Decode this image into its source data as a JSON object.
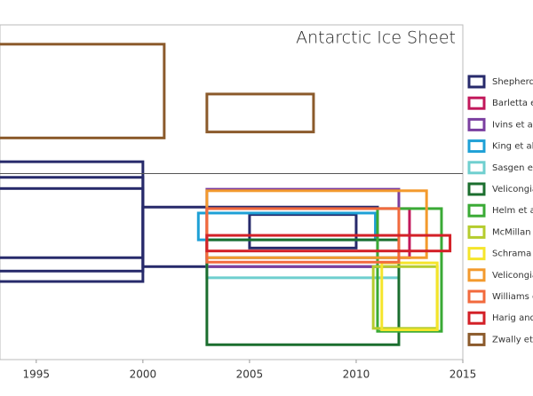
{
  "chart_data": {
    "type": "range_box",
    "title": "Antarctic Ice Sheet",
    "xlim": [
      1993.3,
      2015
    ],
    "xticks": [
      1995,
      2000,
      2005,
      2010,
      2015
    ],
    "ylim": [
      -250,
      200
    ],
    "zero_line": 0,
    "series": [
      {
        "name": "Shepherd",
        "color": "#272a6b",
        "boxes": [
          {
            "x": [
              1992,
              2000
            ],
            "y": [
              -113,
              16
            ]
          },
          {
            "x": [
              1992,
              2000
            ],
            "y": [
              -131,
              -5
            ]
          },
          {
            "x": [
              1992,
              2000
            ],
            "y": [
              -145,
              -20
            ]
          },
          {
            "x": [
              2000,
              2011
            ],
            "y": [
              -125,
              -45
            ]
          },
          {
            "x": [
              2005,
              2010
            ],
            "y": [
              -100,
              -55
            ]
          }
        ]
      },
      {
        "name": "Barletta e",
        "color": "#c2185b",
        "boxes": [
          {
            "x": [
              2003,
              2012.5
            ],
            "y": [
              -113,
              -47
            ]
          }
        ]
      },
      {
        "name": "Ivins et al.",
        "color": "#7b3fa0",
        "boxes": [
          {
            "x": [
              2003,
              2012
            ],
            "y": [
              -125,
              -21
            ]
          }
        ]
      },
      {
        "name": "King et al.",
        "color": "#1ea0d6",
        "boxes": [
          {
            "x": [
              2002.6,
              2010.9
            ],
            "y": [
              -89,
              -53
            ]
          }
        ]
      },
      {
        "name": "Sasgen et",
        "color": "#6fcfcf",
        "boxes": [
          {
            "x": [
              2003,
              2012
            ],
            "y": [
              -140,
              -113
            ]
          }
        ]
      },
      {
        "name": "Velicongia",
        "color": "#1b6e2e",
        "boxes": [
          {
            "x": [
              2003,
              2012
            ],
            "y": [
              -230,
              -89
            ]
          }
        ]
      },
      {
        "name": "Helm et a",
        "color": "#3aaa35",
        "boxes": [
          {
            "x": [
              2011,
              2014
            ],
            "y": [
              -212,
              -47
            ]
          }
        ]
      },
      {
        "name": "McMillan",
        "color": "#b5cc2e",
        "boxes": [
          {
            "x": [
              2010.8,
              2013.8
            ],
            "y": [
              -208,
              -125
            ]
          }
        ]
      },
      {
        "name": "Schrama e",
        "color": "#f5e52b",
        "boxes": [
          {
            "x": [
              2011.2,
              2013.8
            ],
            "y": [
              -210,
              -120
            ]
          }
        ]
      },
      {
        "name": "Velicongia",
        "color": "#f39a2d",
        "boxes": [
          {
            "x": [
              2003,
              2013.3
            ],
            "y": [
              -113,
              -23
            ]
          }
        ]
      },
      {
        "name": "Williams e",
        "color": "#f26a3d",
        "boxes": [
          {
            "x": [
              2003,
              2012
            ],
            "y": [
              -119,
              -47
            ]
          }
        ]
      },
      {
        "name": "Harig and",
        "color": "#d32027",
        "boxes": [
          {
            "x": [
              2003,
              2014.4
            ],
            "y": [
              -104,
              -83
            ]
          }
        ]
      },
      {
        "name": "Zwally et",
        "color": "#8b5a2b",
        "boxes": [
          {
            "x": [
              1992,
              2001
            ],
            "y": [
              48,
              174
            ]
          },
          {
            "x": [
              2003,
              2008
            ],
            "y": [
              56,
              107
            ]
          }
        ]
      }
    ]
  }
}
